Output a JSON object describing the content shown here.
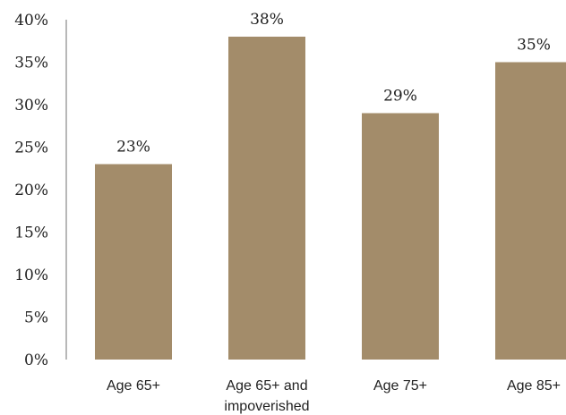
{
  "chart_data": {
    "type": "bar",
    "title": "",
    "xlabel": "",
    "ylabel": "",
    "categories": [
      [
        "Age 65+"
      ],
      [
        "Age 65+ and",
        "impoverished"
      ],
      [
        "Age 75+"
      ],
      [
        "Age 85+"
      ]
    ],
    "values": [
      23,
      38,
      29,
      35
    ],
    "data_labels": [
      "23%",
      "38%",
      "29%",
      "35%"
    ],
    "ylim": [
      0,
      40
    ],
    "yticks": [
      0,
      5,
      10,
      15,
      20,
      25,
      30,
      35,
      40
    ],
    "ytick_labels": [
      "0%",
      "5%",
      "10%",
      "15%",
      "20%",
      "25%",
      "30%",
      "35%",
      "40%"
    ],
    "grid": false,
    "legend": "none",
    "colors": {
      "bar": "#a38c6a",
      "axis": "#888888"
    }
  }
}
